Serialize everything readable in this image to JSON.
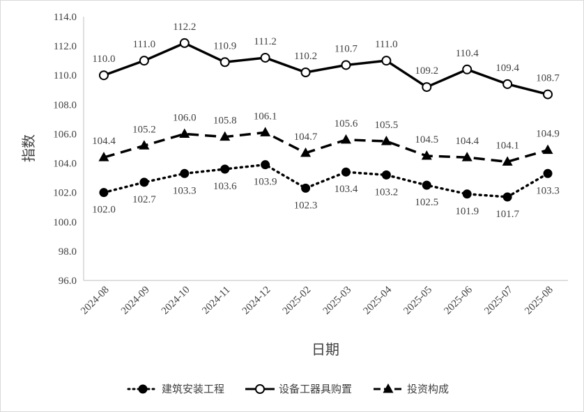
{
  "chart_data": {
    "type": "line",
    "title": "",
    "xlabel": "日期",
    "ylabel": "指数",
    "ylim": [
      96.0,
      114.0
    ],
    "yticks": [
      "96.0",
      "98.0",
      "100.0",
      "102.0",
      "104.0",
      "106.0",
      "108.0",
      "110.0",
      "112.0",
      "114.0"
    ],
    "grid": false,
    "legend_position": "bottom",
    "categories": [
      "2024-08",
      "2024-09",
      "2024-10",
      "2024-11",
      "2024-12",
      "2025-02",
      "2025-03",
      "2025-04",
      "2025-05",
      "2025-06",
      "2025-07",
      "2025-08"
    ],
    "series": [
      {
        "name": "建筑安装工程",
        "style": "dotted",
        "marker": "filled-circle",
        "color": "#000000",
        "values": [
          102.0,
          102.7,
          103.3,
          103.6,
          103.9,
          102.3,
          103.4,
          103.2,
          102.5,
          101.9,
          101.7,
          103.3
        ],
        "labels": [
          "102.0",
          "102.7",
          "103.3",
          "103.6",
          "103.9",
          "102.3",
          "103.4",
          "103.2",
          "102.5",
          "101.9",
          "101.7",
          "103.3"
        ]
      },
      {
        "name": "设备工器具购置",
        "style": "solid",
        "marker": "open-circle",
        "color": "#000000",
        "values": [
          110.0,
          111.0,
          112.2,
          110.9,
          111.2,
          110.2,
          110.7,
          111.0,
          109.2,
          110.4,
          109.4,
          108.7
        ],
        "labels": [
          "110.0",
          "111.0",
          "112.2",
          "110.9",
          "111.2",
          "110.2",
          "110.7",
          "111.0",
          "109.2",
          "110.4",
          "109.4",
          "108.7"
        ]
      },
      {
        "name": "投资构成",
        "style": "dashed",
        "marker": "filled-triangle",
        "color": "#000000",
        "values": [
          104.4,
          105.2,
          106.0,
          105.8,
          106.1,
          104.7,
          105.6,
          105.5,
          104.5,
          104.4,
          104.1,
          104.9
        ],
        "labels": [
          "104.4",
          "105.2",
          "106.0",
          "105.8",
          "106.1",
          "104.7",
          "105.6",
          "105.5",
          "104.5",
          "104.4",
          "104.1",
          "104.9"
        ]
      }
    ]
  }
}
